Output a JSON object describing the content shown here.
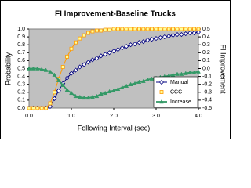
{
  "chart_data": {
    "type": "line",
    "title": "FI Improvement-Baseline Trucks",
    "x_label": "Following Interval (sec)",
    "y_label": "Probability",
    "y2_label": "FI Improvement",
    "x": [
      0,
      0.1,
      0.2,
      0.3,
      0.4,
      0.5,
      0.6,
      0.7,
      0.8,
      0.9,
      1,
      1.1,
      1.2,
      1.3,
      1.4,
      1.5,
      1.6,
      1.7,
      1.8,
      1.9,
      2,
      2.1,
      2.2,
      2.3,
      2.4,
      2.5,
      2.6,
      2.7,
      2.8,
      2.9,
      3,
      3.1,
      3.2,
      3.3,
      3.4,
      3.5,
      3.6,
      3.7,
      3.8,
      3.9,
      4
    ],
    "series": [
      {
        "name": "Manual",
        "color": "#000080",
        "marker": "diamond",
        "values": [
          0,
          0,
          0,
          0,
          0,
          0.02,
          0.12,
          0.22,
          0.31,
          0.38,
          0.44,
          0.48,
          0.52,
          0.55,
          0.58,
          0.61,
          0.63,
          0.66,
          0.68,
          0.7,
          0.72,
          0.74,
          0.76,
          0.78,
          0.8,
          0.81,
          0.83,
          0.84,
          0.86,
          0.87,
          0.88,
          0.89,
          0.9,
          0.91,
          0.92,
          0.93,
          0.93,
          0.94,
          0.95,
          0.95,
          0.96
        ]
      },
      {
        "name": "CCC",
        "color": "#ff9900",
        "marker": "square",
        "values": [
          0,
          0,
          0,
          0,
          0,
          0.06,
          0.2,
          0.37,
          0.52,
          0.65,
          0.75,
          0.83,
          0.88,
          0.92,
          0.95,
          0.97,
          0.98,
          0.98,
          0.99,
          0.99,
          1,
          1,
          1,
          1,
          1,
          1,
          1,
          1,
          1,
          1,
          1,
          1,
          1,
          1,
          1,
          1,
          1,
          1,
          1,
          1,
          1
        ]
      },
      {
        "name": "Increase",
        "color": "#339966",
        "marker": "triangle",
        "axis": "y2",
        "values": [
          0,
          0,
          0,
          -0.01,
          -0.02,
          -0.04,
          -0.08,
          -0.15,
          -0.21,
          -0.27,
          -0.31,
          -0.35,
          -0.36,
          -0.37,
          -0.37,
          -0.36,
          -0.35,
          -0.32,
          -0.31,
          -0.29,
          -0.28,
          -0.26,
          -0.24,
          -0.22,
          -0.2,
          -0.19,
          -0.17,
          -0.16,
          -0.14,
          -0.13,
          -0.12,
          -0.11,
          -0.1,
          -0.09,
          -0.08,
          -0.07,
          -0.07,
          -0.06,
          -0.05,
          -0.05,
          -0.04
        ]
      }
    ],
    "xlim": [
      0,
      4
    ],
    "xticks": [
      {
        "value": 0,
        "label": "0.0"
      },
      {
        "value": 1,
        "label": "1.0"
      },
      {
        "value": 2,
        "label": "2.0"
      },
      {
        "value": 3,
        "label": "3.0"
      },
      {
        "value": 4,
        "label": "4.0"
      }
    ],
    "ylim": [
      0,
      1
    ],
    "yticks": [
      {
        "value": 0,
        "label": "0.0"
      },
      0.1,
      0.2,
      0.3,
      0.4,
      0.5,
      0.6,
      0.7,
      0.8,
      0.9,
      {
        "value": 1,
        "label": "1.0"
      }
    ],
    "y2lim": [
      -0.5,
      0.5
    ],
    "y2ticks": [
      -0.5,
      -0.4,
      -0.3,
      -0.2,
      -0.1,
      {
        "value": 0,
        "label": "0.0"
      },
      0.1,
      0.2,
      0.3,
      0.4,
      0.5
    ],
    "legend": "lower right"
  }
}
